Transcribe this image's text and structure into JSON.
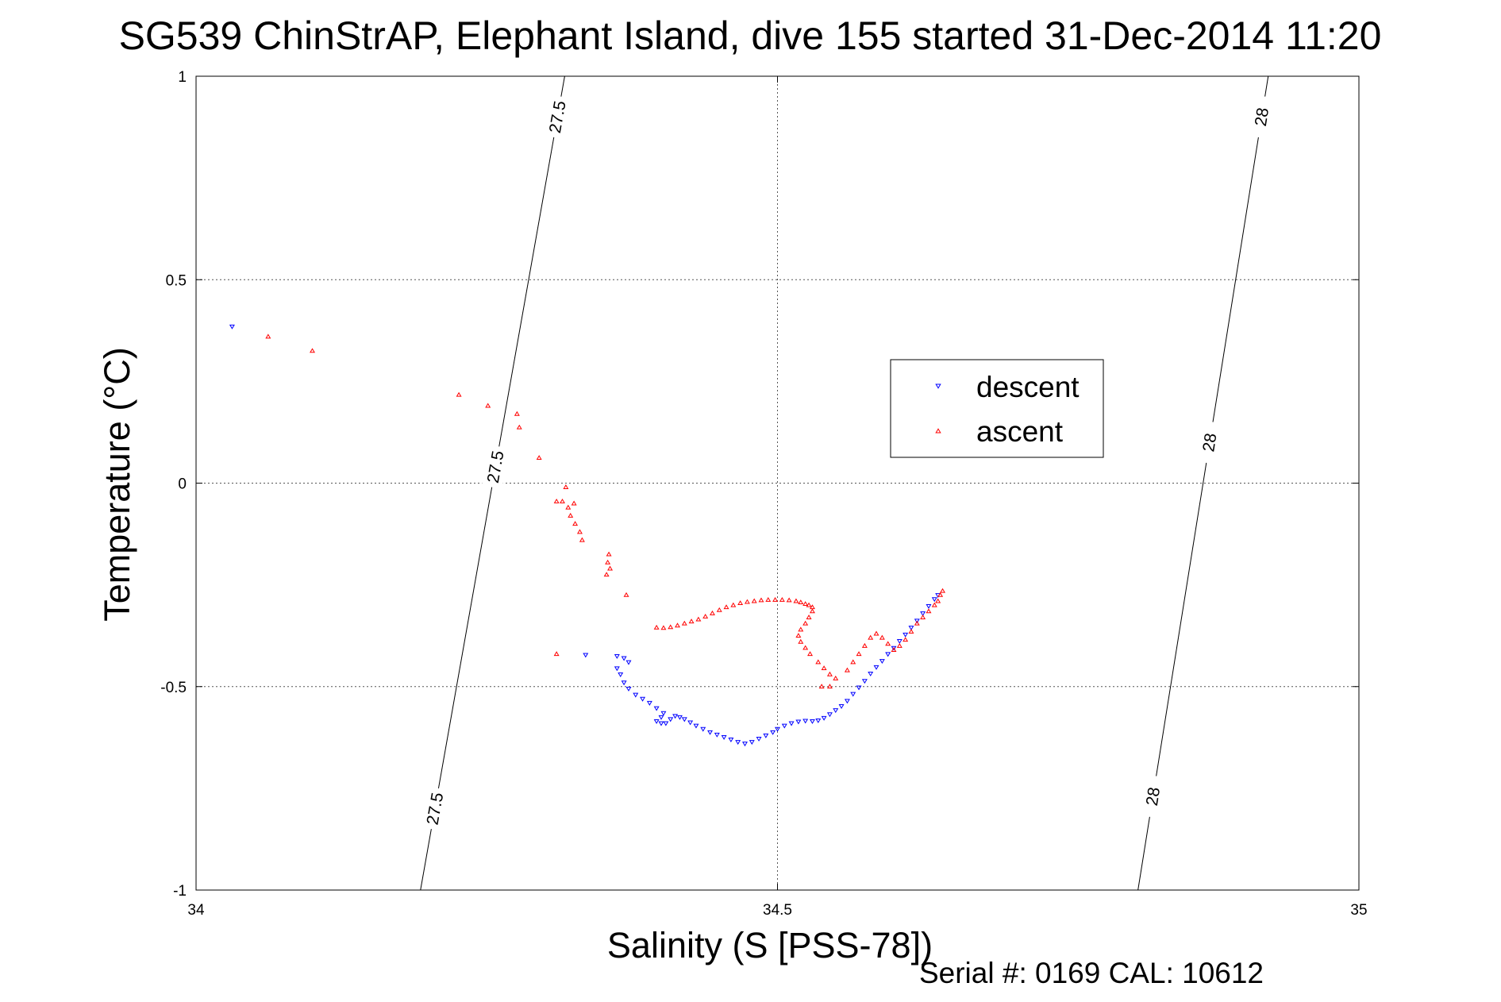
{
  "chart_data": {
    "type": "scatter",
    "title": "SG539 ChinStrAP, Elephant Island, dive 155 started 31-Dec-2014 11:20",
    "xlabel": "Salinity (S [PSS-78])",
    "ylabel": "Temperature (°C)",
    "xlim": [
      34,
      35
    ],
    "ylim": [
      -1,
      1
    ],
    "xticks": [
      34,
      34.5,
      35
    ],
    "xtick_labels": [
      "34",
      "34.5",
      "35"
    ],
    "yticks": [
      -1,
      -0.5,
      0,
      0.5,
      1
    ],
    "ytick_labels": [
      "-1",
      "-0.5",
      "0",
      "0.5",
      "1"
    ],
    "grid": true,
    "legend_position": "right-middle",
    "footer": "Serial #: 0169 CAL: 10612",
    "series": [
      {
        "name": "descent",
        "color": "#0000ff",
        "marker": "triangle-down",
        "points": [
          [
            34.031,
            0.385
          ],
          [
            34.335,
            -0.422
          ],
          [
            34.362,
            -0.425
          ],
          [
            34.368,
            -0.43
          ],
          [
            34.372,
            -0.44
          ],
          [
            34.362,
            -0.455
          ],
          [
            34.365,
            -0.47
          ],
          [
            34.368,
            -0.49
          ],
          [
            34.372,
            -0.505
          ],
          [
            34.378,
            -0.52
          ],
          [
            34.384,
            -0.53
          ],
          [
            34.39,
            -0.54
          ],
          [
            34.396,
            -0.553
          ],
          [
            34.402,
            -0.565
          ],
          [
            34.4,
            -0.575
          ],
          [
            34.396,
            -0.585
          ],
          [
            34.4,
            -0.59
          ],
          [
            34.404,
            -0.59
          ],
          [
            34.408,
            -0.58
          ],
          [
            34.412,
            -0.572
          ],
          [
            34.416,
            -0.575
          ],
          [
            34.42,
            -0.58
          ],
          [
            34.425,
            -0.588
          ],
          [
            34.43,
            -0.596
          ],
          [
            34.436,
            -0.604
          ],
          [
            34.442,
            -0.612
          ],
          [
            34.448,
            -0.618
          ],
          [
            34.454,
            -0.624
          ],
          [
            34.46,
            -0.63
          ],
          [
            34.466,
            -0.636
          ],
          [
            34.472,
            -0.64
          ],
          [
            34.478,
            -0.636
          ],
          [
            34.484,
            -0.628
          ],
          [
            34.49,
            -0.62
          ],
          [
            34.496,
            -0.612
          ],
          [
            34.5,
            -0.604
          ],
          [
            34.506,
            -0.596
          ],
          [
            34.512,
            -0.59
          ],
          [
            34.518,
            -0.586
          ],
          [
            34.524,
            -0.584
          ],
          [
            34.53,
            -0.585
          ],
          [
            34.535,
            -0.583
          ],
          [
            34.54,
            -0.577
          ],
          [
            34.545,
            -0.568
          ],
          [
            34.55,
            -0.558
          ],
          [
            34.555,
            -0.548
          ],
          [
            34.56,
            -0.535
          ],
          [
            34.565,
            -0.518
          ],
          [
            34.57,
            -0.502
          ],
          [
            34.575,
            -0.486
          ],
          [
            34.58,
            -0.468
          ],
          [
            34.585,
            -0.452
          ],
          [
            34.59,
            -0.437
          ],
          [
            34.595,
            -0.42
          ],
          [
            34.6,
            -0.405
          ],
          [
            34.605,
            -0.388
          ],
          [
            34.61,
            -0.372
          ],
          [
            34.615,
            -0.355
          ],
          [
            34.62,
            -0.338
          ],
          [
            34.625,
            -0.32
          ],
          [
            34.63,
            -0.302
          ],
          [
            34.635,
            -0.285
          ],
          [
            34.638,
            -0.275
          ]
        ]
      },
      {
        "name": "ascent",
        "color": "#ff0000",
        "marker": "triangle-up",
        "points": [
          [
            34.062,
            0.36
          ],
          [
            34.1,
            0.325
          ],
          [
            34.226,
            0.217
          ],
          [
            34.251,
            0.19
          ],
          [
            34.276,
            0.17
          ],
          [
            34.278,
            0.137
          ],
          [
            34.295,
            0.062
          ],
          [
            34.31,
            -0.045
          ],
          [
            34.315,
            -0.045
          ],
          [
            34.318,
            -0.01
          ],
          [
            34.32,
            -0.06
          ],
          [
            34.325,
            -0.05
          ],
          [
            34.322,
            -0.08
          ],
          [
            34.326,
            -0.1
          ],
          [
            34.33,
            -0.12
          ],
          [
            34.332,
            -0.14
          ],
          [
            34.355,
            -0.175
          ],
          [
            34.354,
            -0.195
          ],
          [
            34.356,
            -0.21
          ],
          [
            34.353,
            -0.225
          ],
          [
            34.37,
            -0.275
          ],
          [
            34.31,
            -0.42
          ],
          [
            34.396,
            -0.355
          ],
          [
            34.402,
            -0.356
          ],
          [
            34.408,
            -0.354
          ],
          [
            34.414,
            -0.35
          ],
          [
            34.42,
            -0.345
          ],
          [
            34.426,
            -0.34
          ],
          [
            34.432,
            -0.335
          ],
          [
            34.438,
            -0.328
          ],
          [
            34.444,
            -0.32
          ],
          [
            34.45,
            -0.312
          ],
          [
            34.456,
            -0.305
          ],
          [
            34.462,
            -0.3
          ],
          [
            34.468,
            -0.295
          ],
          [
            34.474,
            -0.292
          ],
          [
            34.48,
            -0.29
          ],
          [
            34.486,
            -0.288
          ],
          [
            34.492,
            -0.287
          ],
          [
            34.498,
            -0.287
          ],
          [
            34.504,
            -0.287
          ],
          [
            34.51,
            -0.288
          ],
          [
            34.516,
            -0.29
          ],
          [
            34.52,
            -0.293
          ],
          [
            34.524,
            -0.297
          ],
          [
            34.527,
            -0.3
          ],
          [
            34.53,
            -0.305
          ],
          [
            34.53,
            -0.315
          ],
          [
            34.527,
            -0.33
          ],
          [
            34.524,
            -0.345
          ],
          [
            34.52,
            -0.36
          ],
          [
            34.518,
            -0.375
          ],
          [
            34.52,
            -0.39
          ],
          [
            34.524,
            -0.405
          ],
          [
            34.528,
            -0.42
          ],
          [
            34.535,
            -0.44
          ],
          [
            34.54,
            -0.455
          ],
          [
            34.545,
            -0.47
          ],
          [
            34.55,
            -0.48
          ],
          [
            34.545,
            -0.5
          ],
          [
            34.538,
            -0.5
          ],
          [
            34.56,
            -0.46
          ],
          [
            34.565,
            -0.44
          ],
          [
            34.57,
            -0.42
          ],
          [
            34.575,
            -0.4
          ],
          [
            34.58,
            -0.38
          ],
          [
            34.585,
            -0.37
          ],
          [
            34.59,
            -0.38
          ],
          [
            34.595,
            -0.395
          ],
          [
            34.6,
            -0.41
          ],
          [
            34.605,
            -0.4
          ],
          [
            34.61,
            -0.385
          ],
          [
            34.615,
            -0.365
          ],
          [
            34.62,
            -0.345
          ],
          [
            34.625,
            -0.33
          ],
          [
            34.63,
            -0.315
          ],
          [
            34.635,
            -0.3
          ],
          [
            34.638,
            -0.29
          ],
          [
            34.64,
            -0.275
          ],
          [
            34.642,
            -0.265
          ]
        ]
      }
    ],
    "contours": [
      {
        "label": "27.5",
        "x_at_top": 34.317,
        "x_at_bottom": 34.193,
        "label_temps": [
          0.9,
          0.04,
          -0.8
        ]
      },
      {
        "label": "28",
        "x_at_top": 34.922,
        "x_at_bottom": 34.81,
        "label_temps": [
          0.9,
          0.1,
          -0.77
        ]
      }
    ]
  }
}
